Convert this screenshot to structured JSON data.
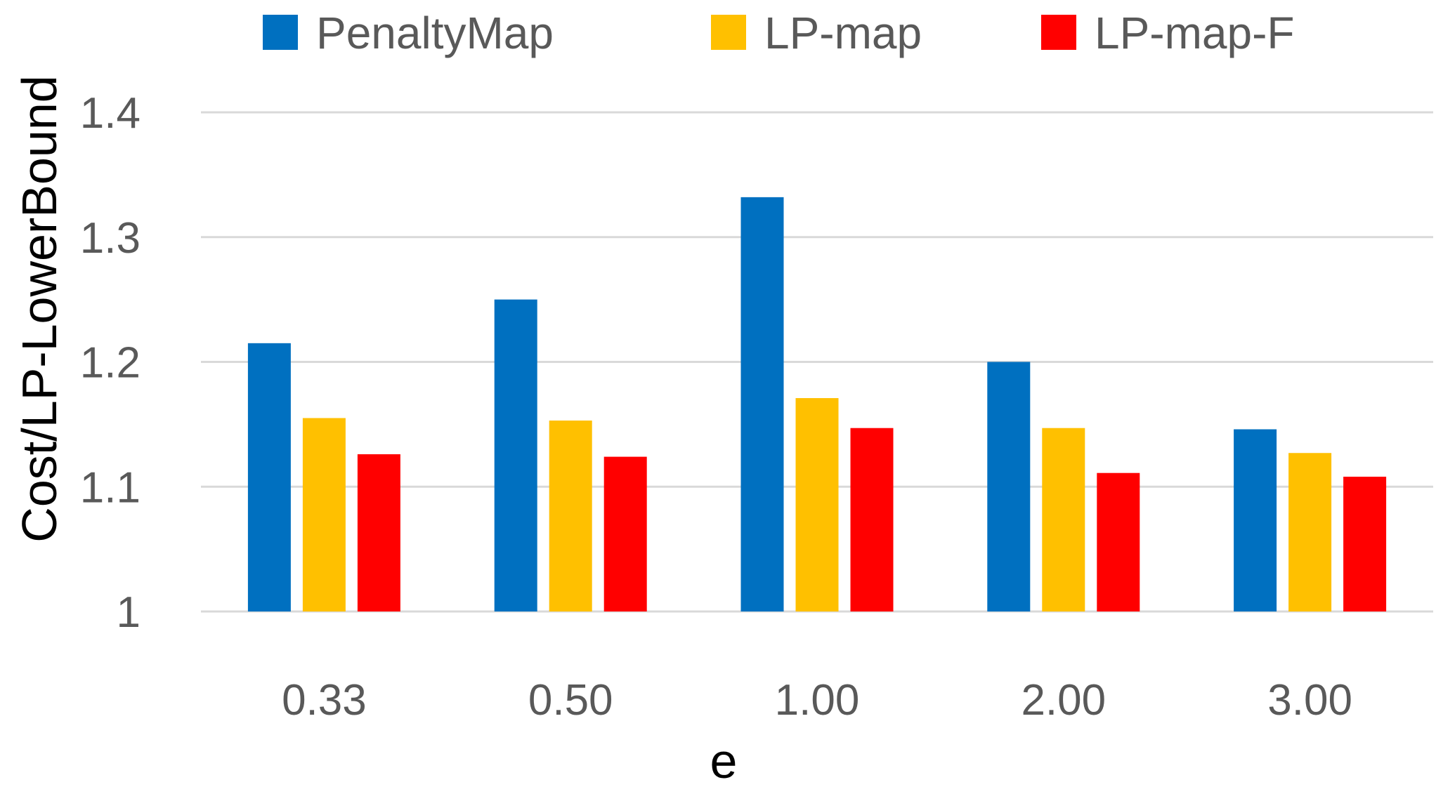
{
  "chart_data": {
    "type": "bar",
    "title": "",
    "xlabel": "e",
    "ylabel": "Cost/LP-LowerBound",
    "categories": [
      "0.33",
      "0.50",
      "1.00",
      "2.00",
      "3.00"
    ],
    "series": [
      {
        "name": "PenaltyMap",
        "color": "#0070c0",
        "values": [
          1.215,
          1.25,
          1.332,
          1.2,
          1.146
        ]
      },
      {
        "name": "LP-map",
        "color": "#ffc000",
        "values": [
          1.155,
          1.153,
          1.171,
          1.147,
          1.127
        ]
      },
      {
        "name": "LP-map-F",
        "color": "#ff0000",
        "values": [
          1.126,
          1.124,
          1.147,
          1.111,
          1.108
        ]
      }
    ],
    "ylim": [
      1,
      1.4
    ],
    "yticks": [
      "1",
      "1.1",
      "1.2",
      "1.3",
      "1.4"
    ],
    "grid": true,
    "legend_position": "top"
  }
}
